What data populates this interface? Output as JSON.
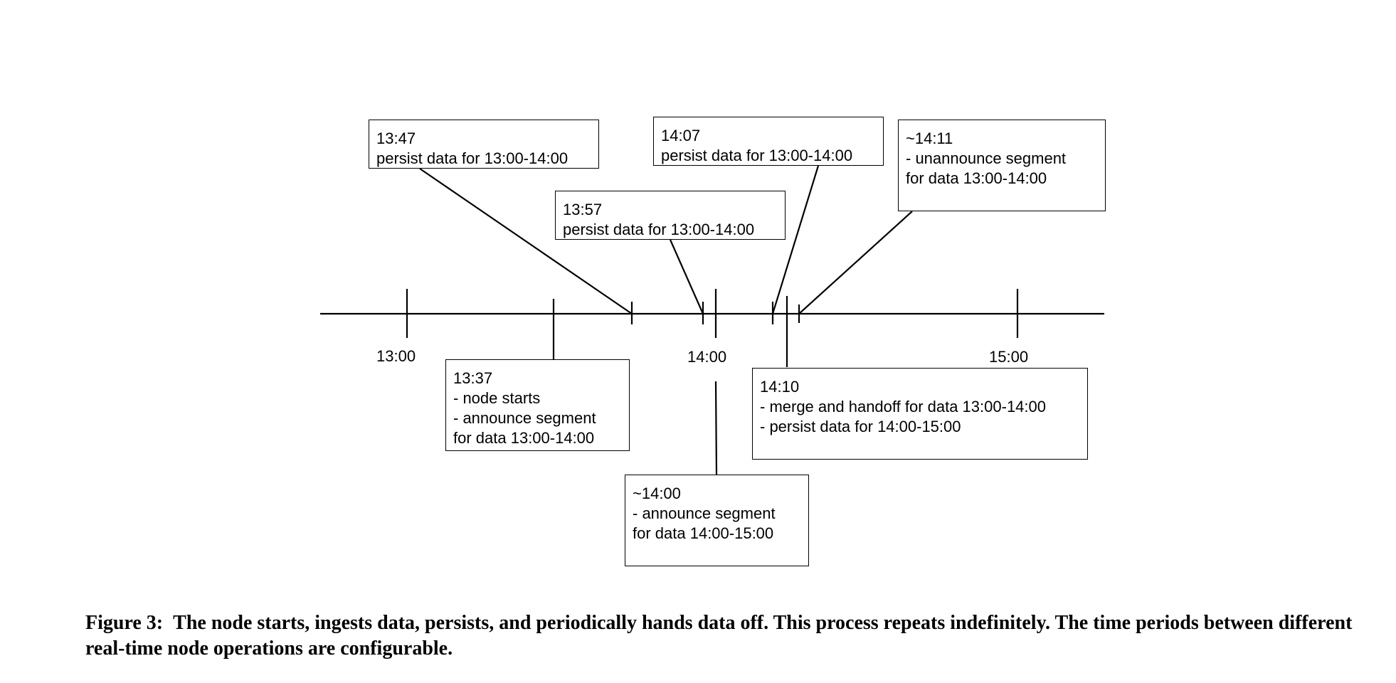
{
  "ticks": [
    {
      "label": "13:00"
    },
    {
      "label": "14:00"
    },
    {
      "label": "15:00"
    }
  ],
  "events": {
    "e1347": {
      "time": "13:47",
      "lines": [
        "persist data for 13:00-14:00"
      ]
    },
    "e1357": {
      "time": "13:57",
      "lines": [
        "persist data for 13:00-14:00"
      ]
    },
    "e1407": {
      "time": "14:07",
      "lines": [
        "persist data for 13:00-14:00"
      ]
    },
    "e1411": {
      "time": "~14:11",
      "lines": [
        "- unannounce segment",
        "for data 13:00-14:00"
      ]
    },
    "e1337": {
      "time": "13:37",
      "lines": [
        "- node starts",
        "- announce segment",
        "for data 13:00-14:00"
      ]
    },
    "e1400": {
      "time": "~14:00",
      "lines": [
        "- announce segment",
        "for data 14:00-15:00"
      ]
    },
    "e1410": {
      "time": "14:10",
      "lines": [
        "- merge and handoff for data 13:00-14:00",
        "- persist data for 14:00-15:00"
      ]
    }
  },
  "caption": {
    "label": "Figure 3:",
    "text": "The node starts, ingests data, persists, and periodically hands data off. This process repeats indefinitely. The time periods between different real-time node operations are configurable."
  }
}
